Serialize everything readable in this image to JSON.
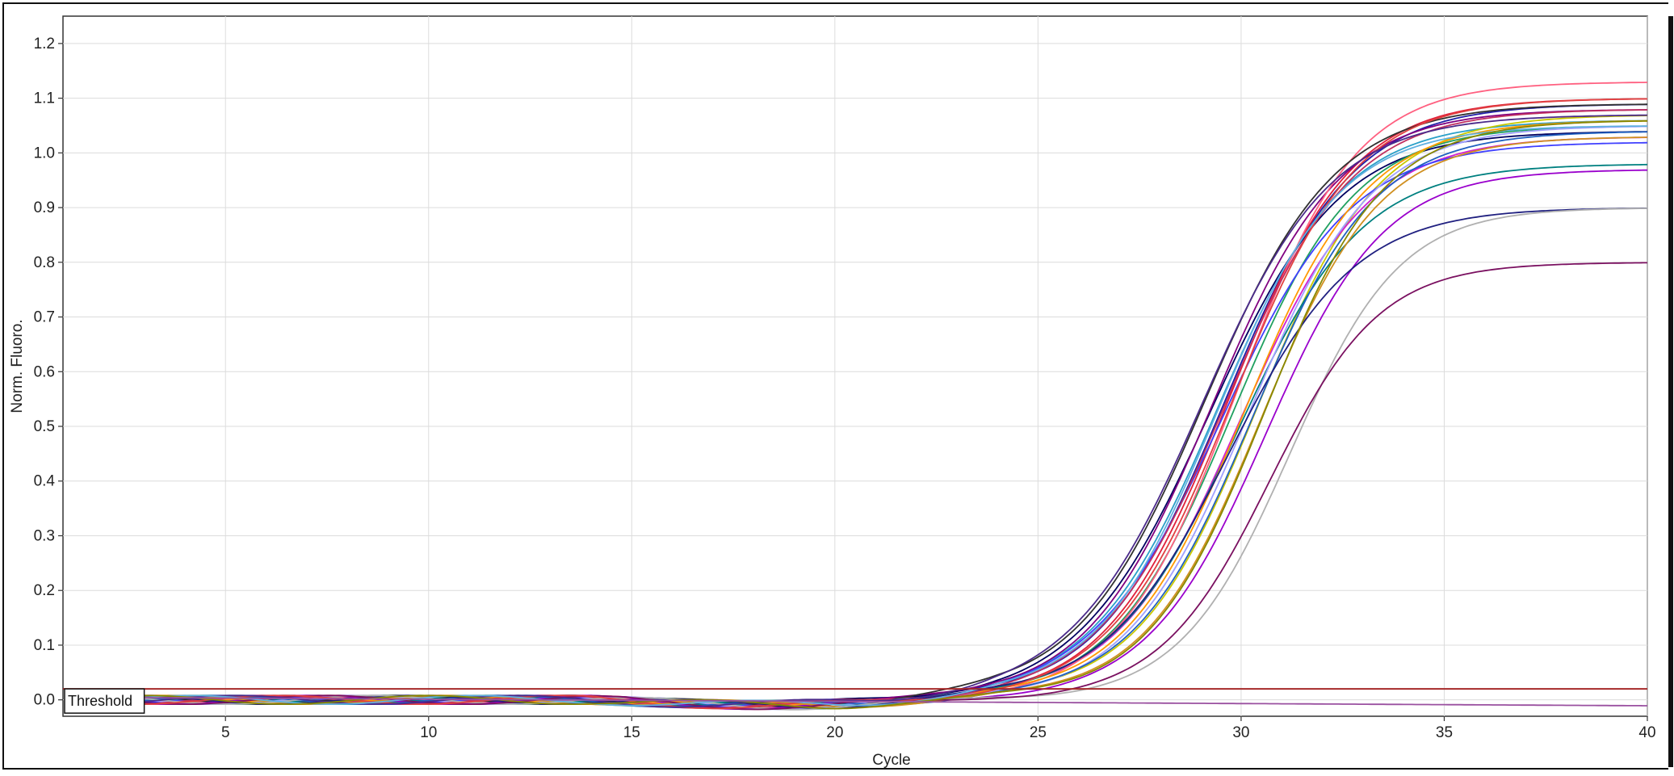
{
  "chart_data": {
    "type": "line",
    "xlabel": "Cycle",
    "ylabel": "Norm. Fluoro.",
    "xlim": [
      1,
      40
    ],
    "ylim": [
      -0.03,
      1.25
    ],
    "xticks": [
      5,
      10,
      15,
      20,
      25,
      30,
      35,
      40
    ],
    "yticks": [
      0.0,
      0.1,
      0.2,
      0.3,
      0.4,
      0.5,
      0.6,
      0.7,
      0.8,
      0.9,
      1.0,
      1.1,
      1.2
    ],
    "ytick_labels": [
      "0.0",
      "0.1",
      "0.2",
      "0.3",
      "0.4",
      "0.5",
      "0.6",
      "0.7",
      "0.8",
      "0.9",
      "1.0",
      "1.1",
      "1.2"
    ],
    "grid": true,
    "legend": "none",
    "threshold": {
      "label": "Threshold",
      "value": 0.02,
      "color": "#a52a2a"
    },
    "baseline_start_cycle": 3,
    "series": [
      {
        "color": "#1f1fa8",
        "plateau": 1.09,
        "midpoint": 29.6,
        "slope": 1.55
      },
      {
        "color": "#e0203a",
        "plateau": 1.1,
        "midpoint": 29.7,
        "slope": 1.5
      },
      {
        "color": "#000060",
        "plateau": 1.04,
        "midpoint": 29.2,
        "slope": 1.6
      },
      {
        "color": "#2aa0c8",
        "plateau": 1.06,
        "midpoint": 29.4,
        "slope": 1.55
      },
      {
        "color": "#c8c800",
        "plateau": 1.07,
        "midpoint": 30.4,
        "slope": 1.5
      },
      {
        "color": "#d020d0",
        "plateau": 1.03,
        "midpoint": 30.0,
        "slope": 1.55
      },
      {
        "color": "#20a060",
        "plateau": 1.05,
        "midpoint": 29.8,
        "slope": 1.5
      },
      {
        "color": "#800080",
        "plateau": 1.08,
        "midpoint": 29.3,
        "slope": 1.55
      },
      {
        "color": "#ff6080",
        "plateau": 1.13,
        "midpoint": 29.9,
        "slope": 1.45
      },
      {
        "color": "#4040ff",
        "plateau": 1.02,
        "midpoint": 29.5,
        "slope": 1.6
      },
      {
        "color": "#008080",
        "plateau": 0.98,
        "midpoint": 29.9,
        "slope": 1.55
      },
      {
        "color": "#ff9900",
        "plateau": 1.06,
        "midpoint": 30.1,
        "slope": 1.5
      },
      {
        "color": "#303030",
        "plateau": 1.09,
        "midpoint": 29.1,
        "slope": 1.6
      },
      {
        "color": "#a0a0ff",
        "plateau": 1.05,
        "midpoint": 30.2,
        "slope": 1.5
      },
      {
        "color": "#9a00cc",
        "plateau": 0.97,
        "midpoint": 30.6,
        "slope": 1.45
      },
      {
        "color": "#c03060",
        "plateau": 1.08,
        "midpoint": 29.6,
        "slope": 1.55
      },
      {
        "color": "#2060c0",
        "plateau": 1.04,
        "midpoint": 30.3,
        "slope": 1.5
      },
      {
        "color": "#d09020",
        "plateau": 1.03,
        "midpoint": 30.5,
        "slope": 1.45
      },
      {
        "color": "#202080",
        "plateau": 0.9,
        "midpoint": 29.7,
        "slope": 1.55
      },
      {
        "color": "#b0b0b0",
        "plateau": 0.9,
        "midpoint": 31.2,
        "slope": 1.35
      },
      {
        "color": "#7a1060",
        "plateau": 0.8,
        "midpoint": 30.7,
        "slope": 1.35
      },
      {
        "color": "#e04040",
        "plateau": 1.1,
        "midpoint": 29.8,
        "slope": 1.5
      },
      {
        "color": "#4a2a8a",
        "plateau": 1.07,
        "midpoint": 29.0,
        "slope": 1.6
      },
      {
        "color": "#60b0e0",
        "plateau": 1.05,
        "midpoint": 29.4,
        "slope": 1.5
      },
      {
        "color": "#888800",
        "plateau": 1.06,
        "midpoint": 30.6,
        "slope": 1.45
      },
      {
        "color": "#9a50a0",
        "plateau": 0.0,
        "midpoint": 40,
        "slope": 1.0
      }
    ]
  }
}
